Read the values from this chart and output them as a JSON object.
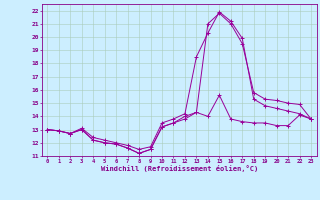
{
  "title": "",
  "xlabel": "Windchill (Refroidissement éolien,°C)",
  "background_color": "#cceeff",
  "grid_color": "#aaccbb",
  "line_color": "#990099",
  "xlim": [
    -0.5,
    23.5
  ],
  "ylim": [
    11,
    22.5
  ],
  "xticks": [
    0,
    1,
    2,
    3,
    4,
    5,
    6,
    7,
    8,
    9,
    10,
    11,
    12,
    13,
    14,
    15,
    16,
    17,
    18,
    19,
    20,
    21,
    22,
    23
  ],
  "yticks": [
    11,
    12,
    13,
    14,
    15,
    16,
    17,
    18,
    19,
    20,
    21,
    22
  ],
  "hours": [
    0,
    1,
    2,
    3,
    4,
    5,
    6,
    7,
    8,
    9,
    10,
    11,
    12,
    13,
    14,
    15,
    16,
    17,
    18,
    19,
    20,
    21,
    22,
    23
  ],
  "line1": [
    13.0,
    12.9,
    12.7,
    13.0,
    12.2,
    12.0,
    11.9,
    11.6,
    11.2,
    11.5,
    13.2,
    13.5,
    13.8,
    14.3,
    14.0,
    15.6,
    13.8,
    13.6,
    13.5,
    13.5,
    13.3,
    13.3,
    14.1,
    13.8
  ],
  "line2": [
    13.0,
    12.9,
    12.7,
    13.0,
    12.2,
    12.0,
    11.9,
    11.6,
    11.2,
    11.5,
    13.2,
    13.5,
    14.0,
    14.3,
    21.0,
    21.8,
    21.0,
    19.5,
    15.8,
    15.3,
    15.2,
    15.0,
    14.9,
    13.8
  ],
  "line3": [
    13.0,
    12.9,
    12.7,
    13.1,
    12.4,
    12.2,
    12.0,
    11.8,
    11.5,
    11.7,
    13.5,
    13.8,
    14.2,
    18.5,
    20.3,
    21.9,
    21.2,
    19.9,
    15.3,
    14.8,
    14.6,
    14.4,
    14.2,
    13.8
  ]
}
